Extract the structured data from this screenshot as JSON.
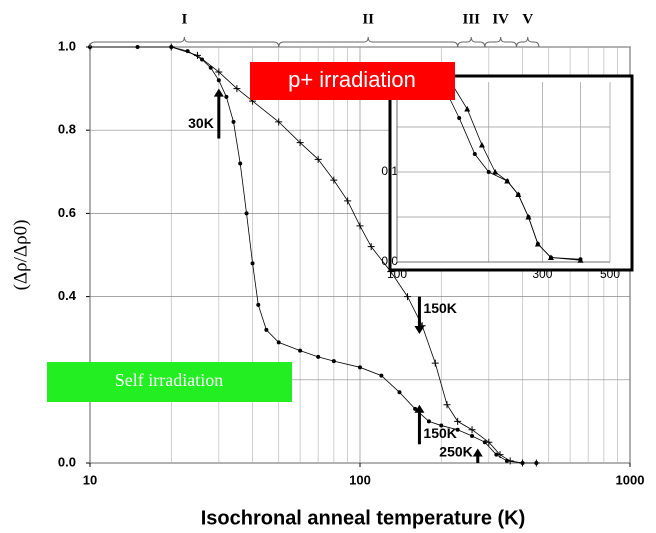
{
  "chart_data": {
    "type": "scatter",
    "xlabel": "Isochronal anneal temperature (K)",
    "ylabel": "(Δρ/Δρ0)",
    "xscale": "log",
    "xlim": [
      10,
      1000
    ],
    "xticks": [
      10,
      100,
      1000
    ],
    "ylim": [
      0,
      1
    ],
    "yticks": [
      {
        "value": 0,
        "label": "0.0"
      },
      {
        "value": 0.2,
        "label": "0.2"
      },
      {
        "value": 0.4,
        "label": "0.4"
      },
      {
        "value": 0.6,
        "label": "0.6"
      },
      {
        "value": 0.8,
        "label": "0.8"
      },
      {
        "value": 1,
        "label": "1.0"
      }
    ],
    "grid": true,
    "series": [
      {
        "marker": "circle",
        "color": "#000000",
        "x": [
          10,
          15,
          20,
          23,
          26,
          28,
          30,
          32,
          34,
          36,
          38,
          40,
          42,
          45,
          50,
          60,
          70,
          80,
          100,
          120,
          140,
          160,
          180,
          200,
          230,
          260,
          290,
          320,
          350,
          400,
          450
        ],
        "values": [
          1.0,
          1.0,
          1.0,
          0.99,
          0.97,
          0.95,
          0.92,
          0.88,
          0.82,
          0.72,
          0.6,
          0.48,
          0.38,
          0.32,
          0.29,
          0.27,
          0.255,
          0.245,
          0.23,
          0.21,
          0.17,
          0.13,
          0.1,
          0.09,
          0.08,
          0.065,
          0.05,
          0.02,
          0.005,
          0.0,
          0.0
        ]
      },
      {
        "marker": "plus",
        "color": "#000000",
        "x": [
          10,
          20,
          25,
          30,
          35,
          40,
          50,
          60,
          70,
          80,
          90,
          100,
          110,
          130,
          150,
          170,
          190,
          210,
          230,
          260,
          300,
          330,
          360,
          400,
          450
        ],
        "values": [
          1.0,
          1.0,
          0.98,
          0.94,
          0.9,
          0.87,
          0.82,
          0.77,
          0.73,
          0.68,
          0.63,
          0.57,
          0.52,
          0.46,
          0.4,
          0.33,
          0.24,
          0.14,
          0.1,
          0.08,
          0.05,
          0.02,
          0.005,
          0.0,
          0.0
        ]
      }
    ],
    "stages": [
      {
        "label": "I",
        "range": [
          10,
          50
        ]
      },
      {
        "label": "II",
        "range": [
          50,
          230
        ]
      },
      {
        "label": "III",
        "range": [
          230,
          290
        ]
      },
      {
        "label": "IV",
        "range": [
          290,
          380
        ]
      },
      {
        "label": "V",
        "range": [
          380,
          460
        ]
      }
    ],
    "annotations": [
      {
        "text": "30K",
        "x": 30,
        "from": 0.78,
        "to": 0.9
      },
      {
        "text": "150K",
        "x": 166,
        "from": 0.4,
        "to": 0.31
      },
      {
        "text": "150K",
        "x": 166,
        "from": 0.045,
        "to": 0.14
      },
      {
        "text": "250K",
        "x": 273,
        "from": 0.0,
        "to": 0.035
      }
    ],
    "labels": {
      "proton": "p+ irradiation",
      "self": "Self irradiation"
    },
    "inset": {
      "xscale": "log",
      "xlim": [
        100,
        500
      ],
      "xticks": [
        100,
        300,
        500
      ],
      "ylim": [
        0,
        0.2
      ],
      "yticks": [
        {
          "value": 0,
          "label": "0.0"
        },
        {
          "value": 0.1,
          "label": "0.1"
        }
      ],
      "series": [
        {
          "marker": "triangle",
          "color": "#000000",
          "x": [
            150,
            170,
            190,
            210,
            230,
            250,
            270,
            290,
            320,
            400
          ],
          "values": [
            0.2,
            0.17,
            0.13,
            0.1,
            0.09,
            0.075,
            0.05,
            0.02,
            0.005,
            0.002
          ]
        },
        {
          "marker": "circle",
          "color": "#000000",
          "x": [
            140,
            160,
            180,
            200,
            230,
            250,
            270,
            290,
            320,
            400
          ],
          "values": [
            0.2,
            0.16,
            0.12,
            0.1,
            0.09,
            0.075,
            0.05,
            0.02,
            0.005,
            0.003
          ]
        }
      ]
    }
  }
}
